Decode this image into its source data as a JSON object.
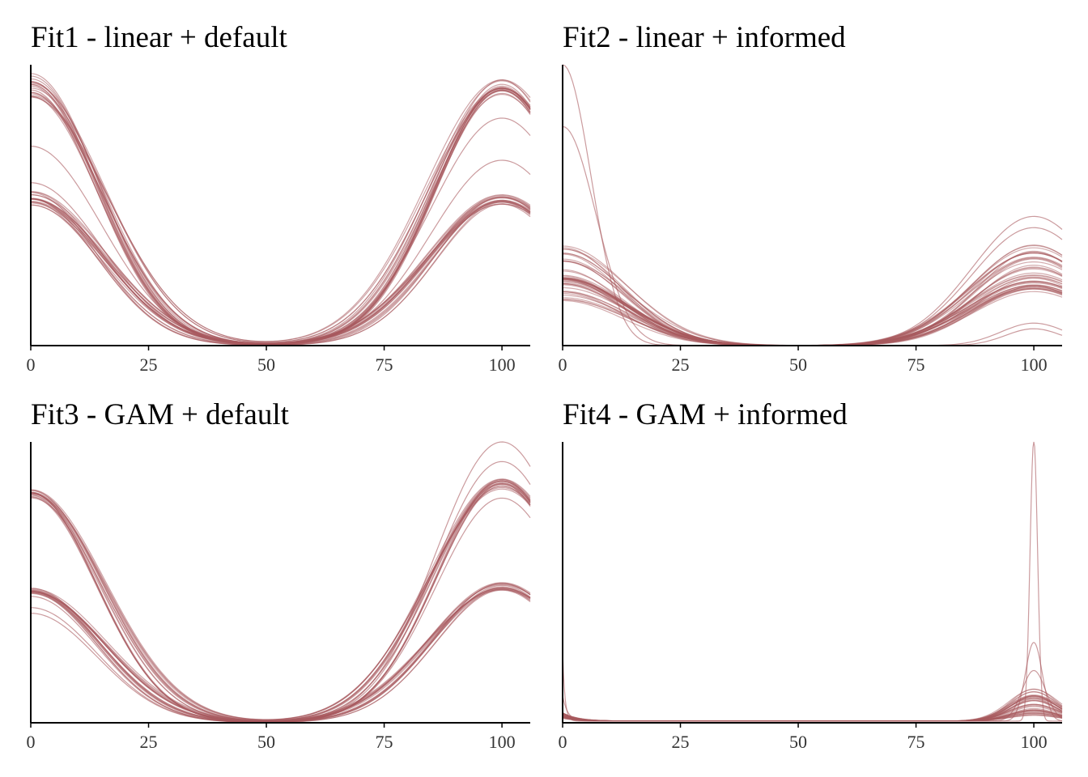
{
  "palette": {
    "line": "#a8595e",
    "axis": "#000000",
    "tick_text": "#333333"
  },
  "chart_data": [
    {
      "type": "line",
      "title": "Fit1 - linear + default",
      "xlabel": "",
      "ylabel": "",
      "xlim": [
        0,
        106
      ],
      "ylim": [
        0,
        1.0
      ],
      "xticks": [
        0,
        25,
        50,
        75,
        100
      ],
      "xtick_labels": [
        "0",
        "25",
        "50",
        "75",
        "100"
      ],
      "y_axis_ticks": false,
      "grid": false,
      "legend": "none",
      "series_mode": "curves",
      "groups": [
        {
          "count": 18,
          "left_peak": [
            0.88,
            0.97
          ],
          "right_peak": [
            0.89,
            0.95
          ],
          "width": 15,
          "alpha": 0.55
        },
        {
          "count": 18,
          "left_peak": [
            0.5,
            0.55
          ],
          "right_peak": [
            0.5,
            0.54
          ],
          "width": 15,
          "alpha": 0.55
        }
      ],
      "extra": [
        {
          "left_peak": 0.71,
          "right_peak": 0.81,
          "width": 15
        },
        {
          "left_peak": 0.58,
          "right_peak": 0.66,
          "width": 15
        },
        {
          "left_peak": 0.91,
          "right_peak": 0.91,
          "width": 14
        }
      ]
    },
    {
      "type": "line",
      "title": "Fit2 - linear + informed",
      "xlabel": "",
      "ylabel": "",
      "xlim": [
        0,
        106
      ],
      "ylim": [
        0,
        1.0
      ],
      "xticks": [
        0,
        25,
        50,
        75,
        100
      ],
      "xtick_labels": [
        "0",
        "25",
        "50",
        "75",
        "100"
      ],
      "y_axis_ticks": false,
      "grid": false,
      "legend": "none",
      "series_mode": "curves",
      "groups": [
        {
          "count": 40,
          "left_peak": [
            0.16,
            0.36
          ],
          "right_peak": [
            0.19,
            0.36
          ],
          "width": 13,
          "alpha": 0.5
        }
      ],
      "extra": [
        {
          "left_peak": 1.0,
          "right_peak": 0.06,
          "width": 6
        },
        {
          "left_peak": 0.78,
          "right_peak": 0.08,
          "width": 7
        },
        {
          "left_peak": 0.3,
          "right_peak": 0.46,
          "width": 13
        },
        {
          "left_peak": 0.22,
          "right_peak": 0.42,
          "width": 13
        }
      ]
    },
    {
      "type": "line",
      "title": "Fit3 - GAM + default",
      "xlabel": "",
      "ylabel": "",
      "xlim": [
        0,
        106
      ],
      "ylim": [
        0,
        1.0
      ],
      "xticks": [
        0,
        25,
        50,
        75,
        100
      ],
      "xtick_labels": [
        "0",
        "25",
        "50",
        "75",
        "100"
      ],
      "y_axis_ticks": false,
      "grid": false,
      "legend": "none",
      "series_mode": "curves",
      "groups": [
        {
          "count": 16,
          "left_peak": [
            0.8,
            0.83
          ],
          "right_peak": [
            0.83,
            0.87
          ],
          "width": 15,
          "alpha": 0.55
        },
        {
          "count": 16,
          "left_peak": [
            0.46,
            0.48
          ],
          "right_peak": [
            0.47,
            0.5
          ],
          "width": 15,
          "alpha": 0.55
        }
      ],
      "extra": [
        {
          "left_peak": 0.45,
          "right_peak": 1.0,
          "width": 14
        },
        {
          "left_peak": 0.41,
          "right_peak": 0.93,
          "width": 14
        },
        {
          "left_peak": 0.39,
          "right_peak": 0.8,
          "width": 14
        }
      ]
    },
    {
      "type": "line",
      "title": "Fit4 - GAM + informed",
      "xlabel": "",
      "ylabel": "",
      "xlim": [
        0,
        106
      ],
      "ylim": [
        0,
        1.0
      ],
      "xticks": [
        0,
        25,
        50,
        75,
        100
      ],
      "xtick_labels": [
        "0",
        "25",
        "50",
        "75",
        "100"
      ],
      "y_axis_ticks": false,
      "grid": false,
      "legend": "none",
      "series_mode": "spikes",
      "groups": [
        {
          "count": 36,
          "left_peak": [
            0.01,
            0.03
          ],
          "right_peak": [
            0.02,
            0.12
          ],
          "width": 5,
          "alpha": 0.5
        }
      ],
      "extra": [
        {
          "left_peak": 0.25,
          "right_peak": 1.0,
          "width": 0.8
        },
        {
          "left_peak": 0.09,
          "right_peak": 0.28,
          "width": 1.8
        },
        {
          "left_peak": 0.02,
          "right_peak": 0.18,
          "width": 2.5
        }
      ]
    }
  ]
}
